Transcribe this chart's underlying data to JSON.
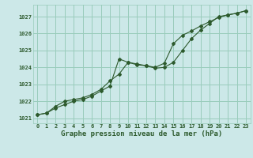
{
  "title": "Graphe pression niveau de la mer (hPa)",
  "bg_color": "#cce8e8",
  "grid_color": "#99ccbb",
  "line_color": "#2d5a2d",
  "xlim": [
    -0.5,
    23.5
  ],
  "ylim": [
    1020.7,
    1027.7
  ],
  "yticks": [
    1021,
    1022,
    1023,
    1024,
    1025,
    1026,
    1027
  ],
  "xticks": [
    0,
    1,
    2,
    3,
    4,
    5,
    6,
    7,
    8,
    9,
    10,
    11,
    12,
    13,
    14,
    15,
    16,
    17,
    18,
    19,
    20,
    21,
    22,
    23
  ],
  "line1_x": [
    0,
    1,
    2,
    3,
    4,
    5,
    6,
    7,
    8,
    9,
    10,
    11,
    12,
    13,
    14,
    15,
    16,
    17,
    18,
    19,
    20,
    21,
    22,
    23
  ],
  "line1_y": [
    1021.2,
    1021.3,
    1021.6,
    1021.8,
    1022.0,
    1022.1,
    1022.3,
    1022.6,
    1022.9,
    1024.5,
    1024.3,
    1024.2,
    1024.1,
    1023.95,
    1024.0,
    1024.3,
    1025.0,
    1025.7,
    1026.2,
    1026.6,
    1027.0,
    1027.1,
    1027.2,
    1027.35
  ],
  "line2_x": [
    0,
    1,
    2,
    3,
    4,
    5,
    6,
    7,
    8,
    9,
    10,
    11,
    12,
    13,
    14,
    15,
    16,
    17,
    18,
    19,
    20,
    21,
    22,
    23
  ],
  "line2_y": [
    1021.2,
    1021.3,
    1021.7,
    1022.0,
    1022.1,
    1022.2,
    1022.4,
    1022.7,
    1023.2,
    1023.6,
    1024.3,
    1024.15,
    1024.1,
    1024.0,
    1024.25,
    1025.4,
    1025.9,
    1026.15,
    1026.45,
    1026.7,
    1026.95,
    1027.1,
    1027.2,
    1027.35
  ],
  "font_color": "#2d5a2d",
  "title_fontsize": 6.5,
  "tick_fontsize": 5.0,
  "ylabel_fontsize": 5.0
}
